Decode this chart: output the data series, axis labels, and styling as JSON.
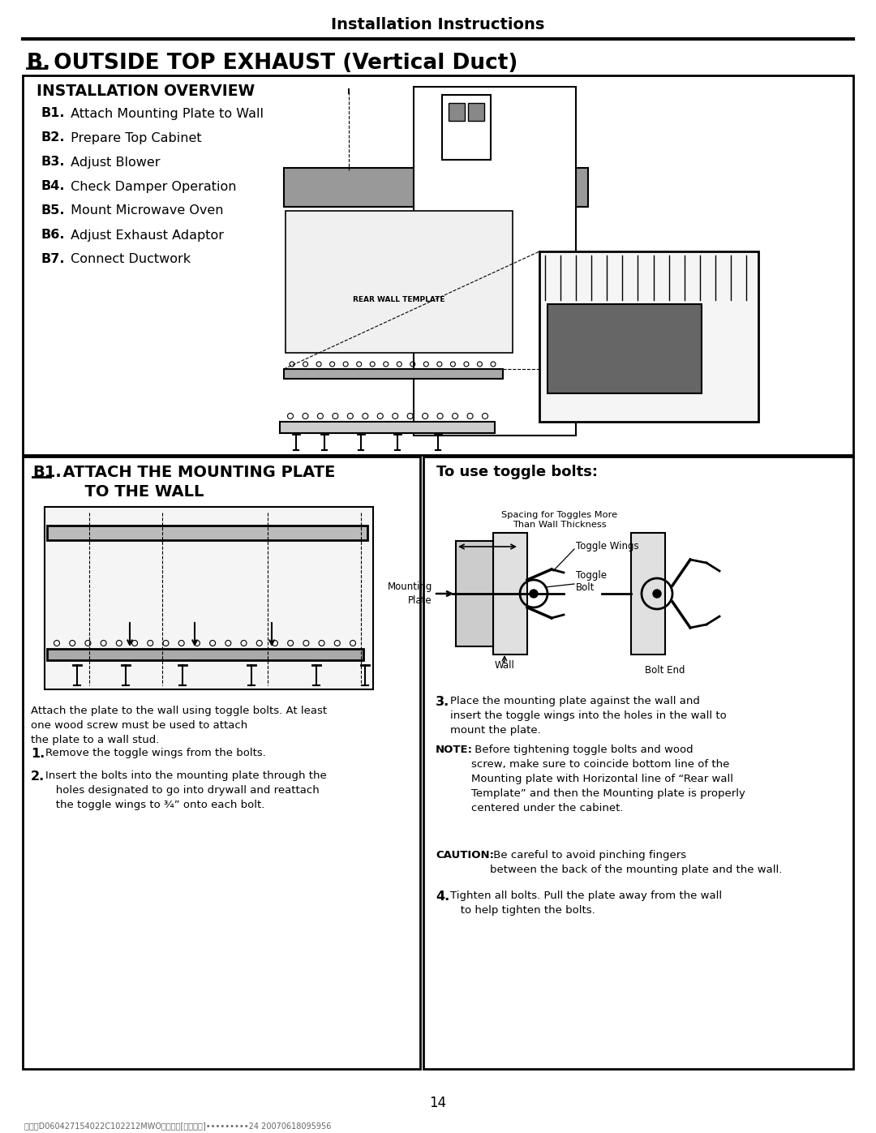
{
  "title": "Installation Instructions",
  "section_b_label": "B.",
  "section_b_text": " OUTSIDE TOP EXHAUST (Vertical Duct)",
  "overview_title": "INSTALLATION OVERVIEW",
  "overview_items": [
    [
      "B1.",
      " Attach Mounting Plate to Wall"
    ],
    [
      "B2.",
      " Prepare Top Cabinet"
    ],
    [
      "B3.",
      " Adjust Blower"
    ],
    [
      "B4.",
      " Check Damper Operation"
    ],
    [
      "B5.",
      " Mount Microwave Oven"
    ],
    [
      "B6.",
      " Adjust Exhaust Adaptor"
    ],
    [
      "B7.",
      " Connect Ductwork"
    ]
  ],
  "b1_label": "B1.",
  "b1_text_line1": "  ATTACH THE MOUNTING PLATE",
  "b1_text_line2": "      TO THE WALL",
  "toggle_header": "To use toggle bolts:",
  "intro_text": "Attach the plate to the wall using toggle bolts. At least\none wood screw must be used to attach\nthe plate to a wall stud.",
  "step1_num": "1.",
  "step1_text": "Remove the toggle wings from the bolts.",
  "step2_num": "2.",
  "step2_text": "Insert the bolts into the mounting plate through the\n   holes designated to go into drywall and reattach\n   the toggle wings to ¾” onto each bolt.",
  "step3_num": "3.",
  "step3_text": "Place the mounting plate against the wall and\ninsert the toggle wings into the holes in the wall to\nmount the plate.",
  "note_bold": "NOTE:",
  "note_text": " Before tightening toggle bolts and wood\nscrew, make sure to coincide bottom line of the\nMounting plate with Horizontal line of “Rear wall\nTemplate” and then the Mounting plate is properly\ncentered under the cabinet.",
  "caution_bold": "CAUTION:",
  "caution_text": " Be careful to avoid pinching fingers\nbetween the back of the mounting plate and the wall.",
  "step4_num": "4.",
  "step4_text": "Tighten all bolts. Pull the plate away from the wall\n   to help tighten the bolts.",
  "spacing_label": "Spacing for Toggles More\nThan Wall Thickness",
  "toggle_wings_label": "Toggle Wings",
  "mounting_plate_label": "Mounting\nPlate",
  "toggle_bolt_label": "Toggle\nBolt",
  "wall_label": "Wall",
  "bolt_end_label": "Bolt End",
  "page_number": "14",
  "footer": "유진툲D060427154022C102212MWO개발그룹[조리기기]•••••••••24 20070618095956",
  "bg": "#ffffff",
  "fg": "#000000"
}
